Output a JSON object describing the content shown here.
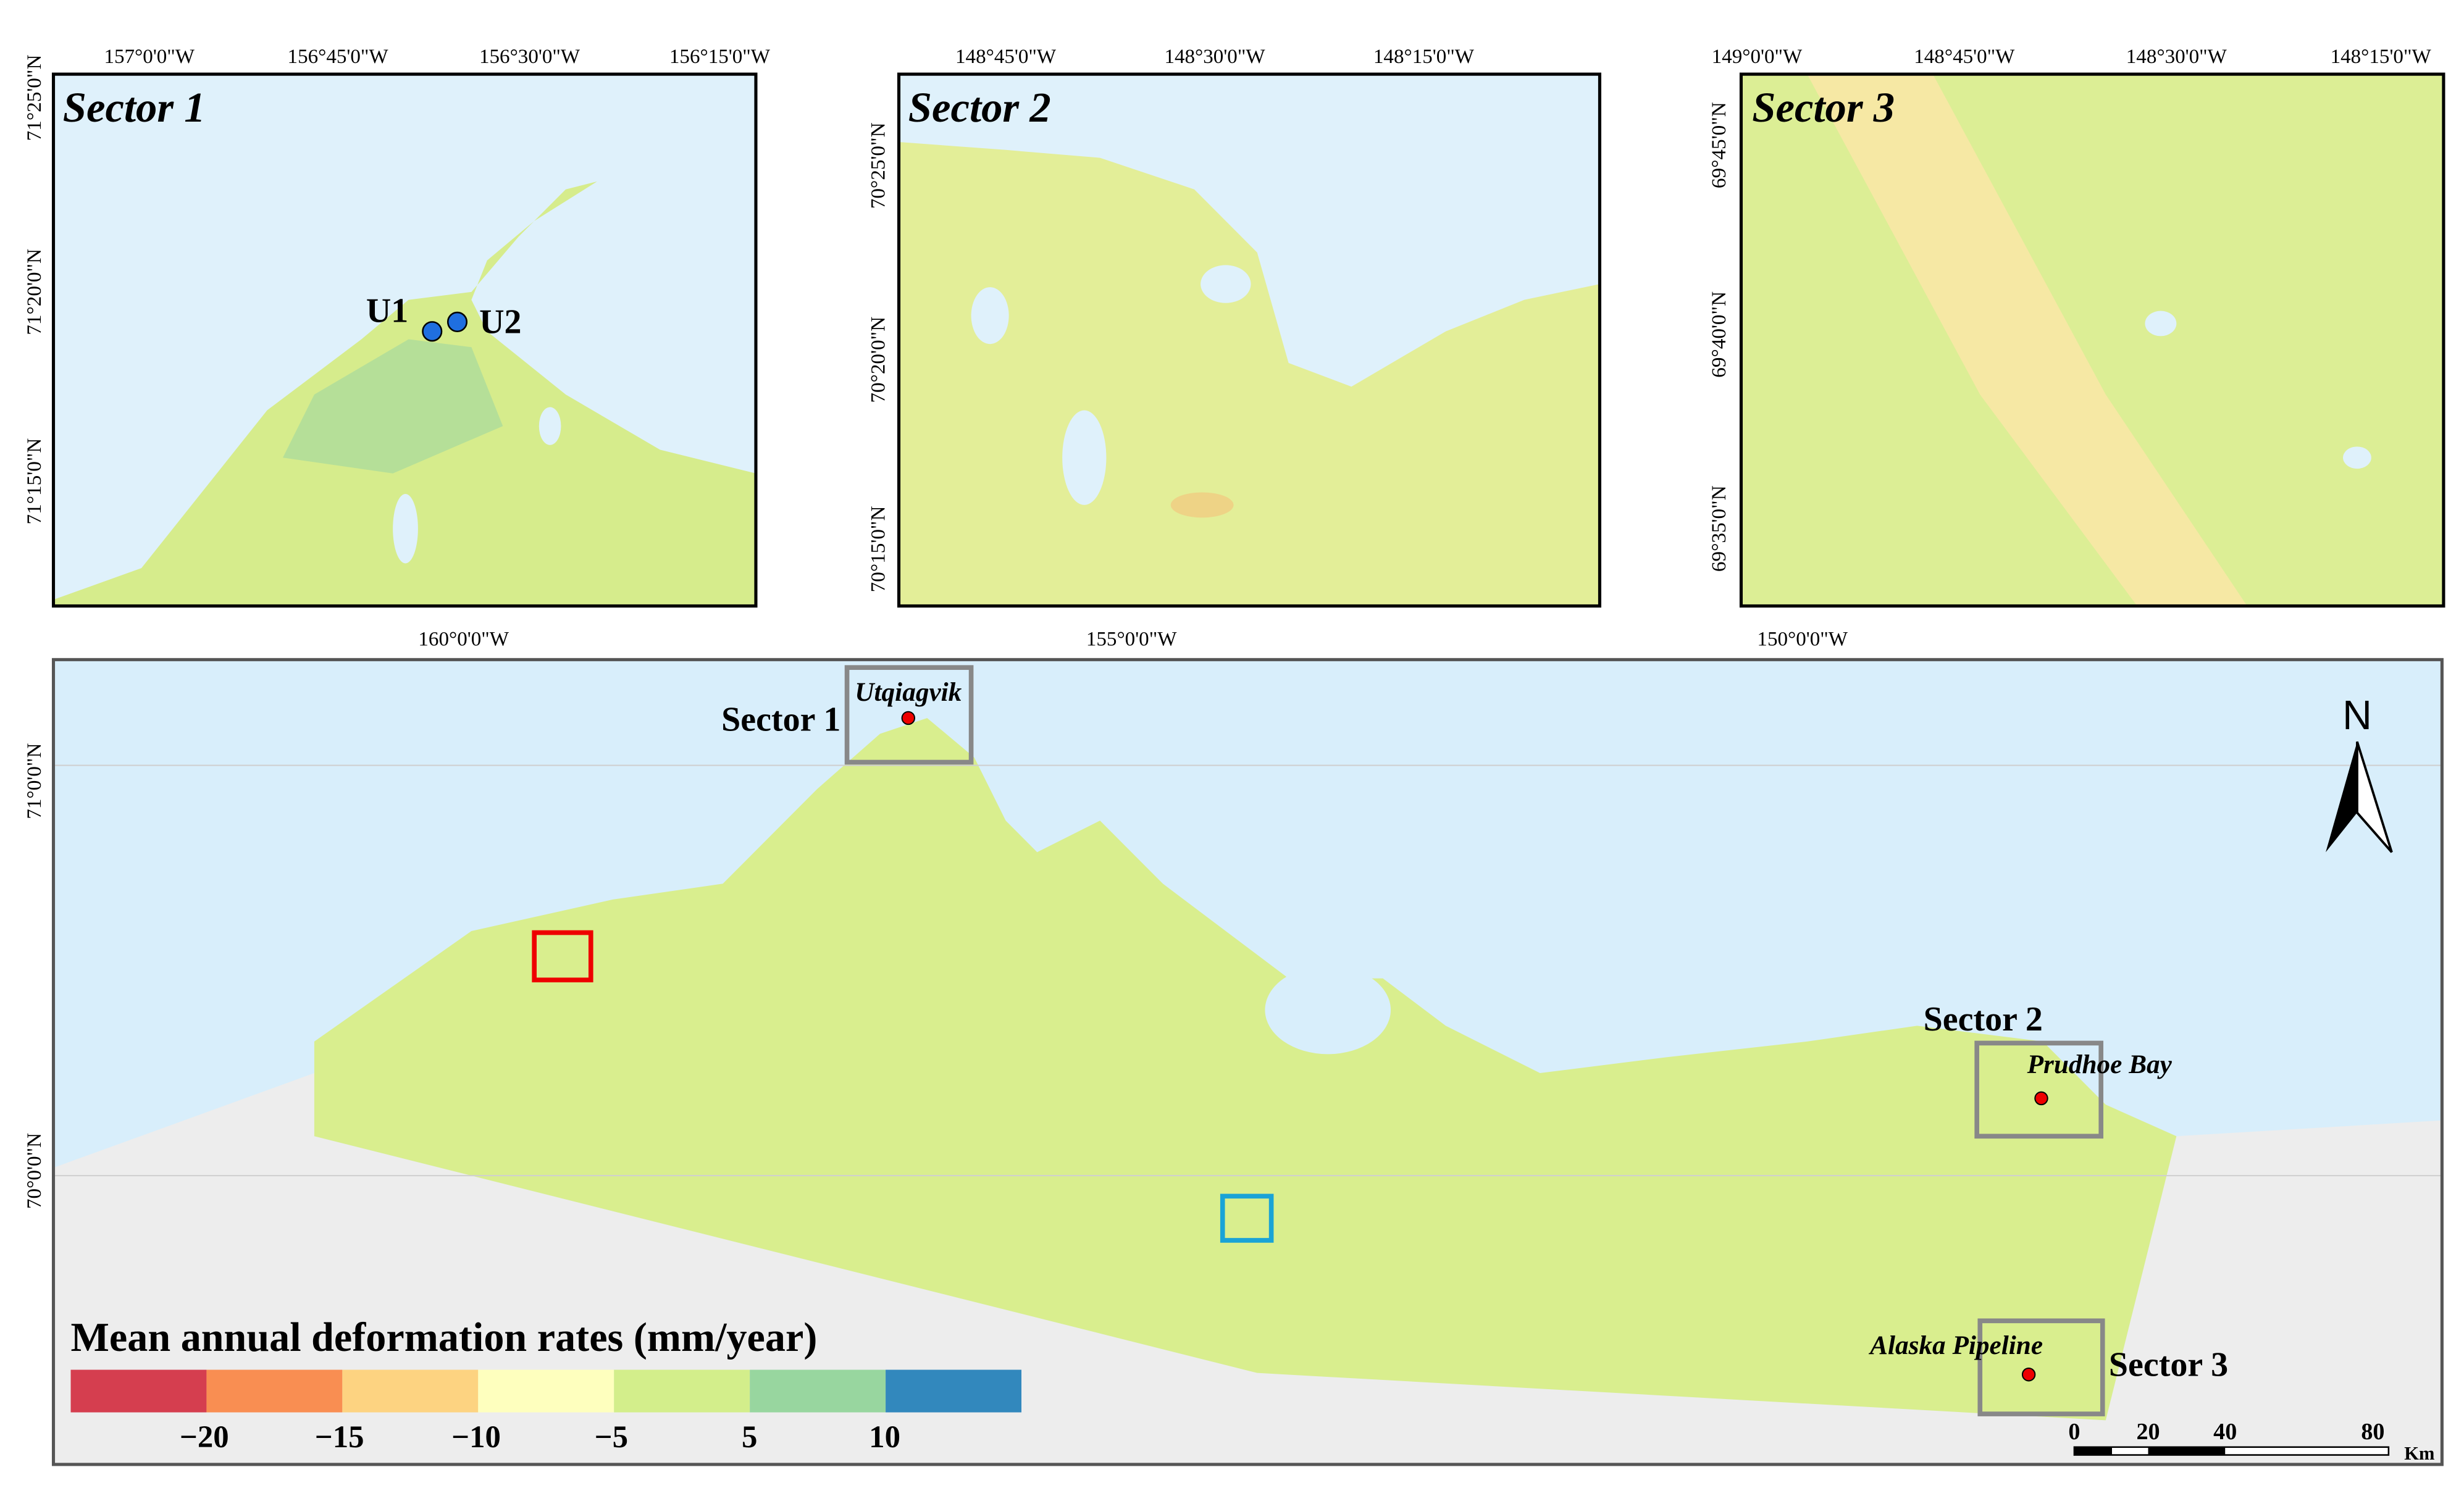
{
  "panels": [
    {
      "title": "Sector 1",
      "x_labels": [
        "157°0'0\"W",
        "156°45'0\"W",
        "156°30'0\"W",
        "156°15'0\"W"
      ],
      "y_labels": [
        "71°25'0\"N",
        "71°20'0\"N",
        "71°15'0\"N"
      ],
      "points": [
        "U1",
        "U2"
      ]
    },
    {
      "title": "Sector 2",
      "x_labels": [
        "148°45'0\"W",
        "148°30'0\"W",
        "148°15'0\"W"
      ],
      "y_labels": [
        "70°25'0\"N",
        "70°20'0\"N",
        "70°15'0\"N"
      ]
    },
    {
      "title": "Sector 3",
      "x_labels": [
        "149°0'0\"W",
        "148°45'0\"W",
        "148°30'0\"W",
        "148°15'0\"W"
      ],
      "y_labels": [
        "69°45'0\"N",
        "69°40'0\"N",
        "69°35'0\"N"
      ]
    }
  ],
  "main": {
    "x_labels": [
      "160°0'0\"W",
      "155°0'0\"W",
      "150°0'0\"W"
    ],
    "y_labels": [
      "71°0'0\"N",
      "70°0'0\"N"
    ],
    "sectors": [
      "Sector 1",
      "Sector 2",
      "Sector 3"
    ],
    "places": [
      "Utqiagvik",
      "Prudhoe Bay",
      "Alaska Pipeline"
    ],
    "north": "N"
  },
  "legend": {
    "title": "Mean annual deformation rates (mm/year)",
    "colors": [
      "#d53e4f",
      "#f98e52",
      "#fdd381",
      "#feffbe",
      "#d3ee8b",
      "#98d69f",
      "#3288bd"
    ],
    "ticks": [
      "−20",
      "−15",
      "−10",
      "−5",
      "5",
      "10"
    ]
  },
  "scale_bar": {
    "ticks": [
      "0",
      "20",
      "40",
      "80"
    ],
    "unit": "Km"
  }
}
